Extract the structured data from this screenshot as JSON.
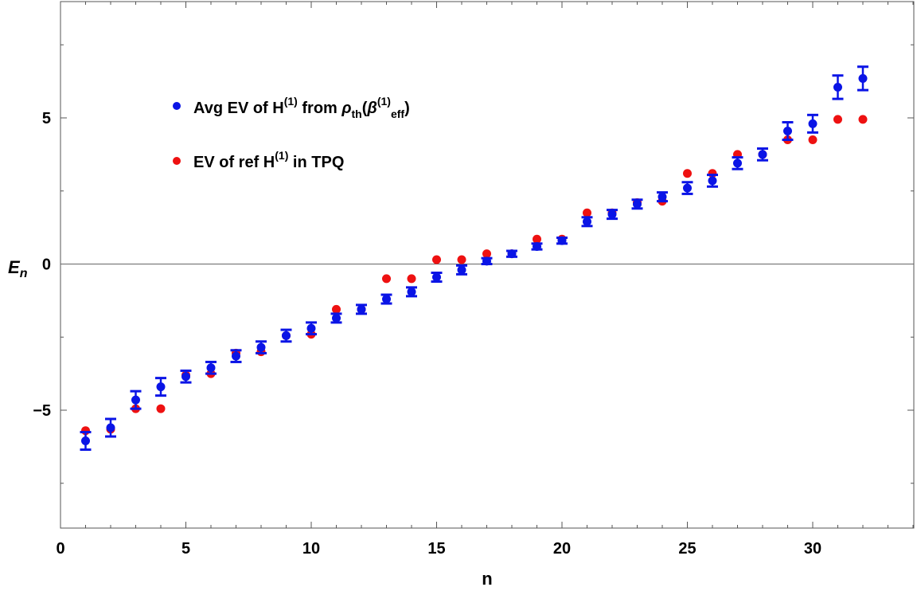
{
  "chart_data": {
    "type": "scatter",
    "xlabel": "n",
    "ylabel": "E",
    "ylabel_sub": "n",
    "xlim": [
      0,
      34
    ],
    "ylim": [
      -9,
      9
    ],
    "x_ticks": [
      0,
      5,
      10,
      15,
      20,
      25,
      30
    ],
    "y_ticks": [
      -5,
      0,
      5
    ],
    "grid": false,
    "legend_position": "top-left",
    "series": [
      {
        "name": "Avg EV of H(1) from ρth(β(1)eff)",
        "legend": {
          "main": "Avg EV of H",
          "sup1": "(1)",
          "mid": " from ",
          "rho": "ρ",
          "rho_sub": "th",
          "open": "(",
          "beta": "β",
          "sup2": "(1)",
          "eff": "eff",
          "close": ")"
        },
        "color": "#0a14e6",
        "marker": "circle",
        "error_bars": true,
        "x": [
          1,
          2,
          3,
          4,
          5,
          6,
          7,
          8,
          9,
          10,
          11,
          12,
          13,
          14,
          15,
          16,
          17,
          18,
          19,
          20,
          21,
          22,
          23,
          24,
          25,
          26,
          27,
          28,
          29,
          30,
          31,
          32
        ],
        "y": [
          -6.05,
          -5.6,
          -4.65,
          -4.2,
          -3.85,
          -3.55,
          -3.15,
          -2.85,
          -2.45,
          -2.2,
          -1.85,
          -1.55,
          -1.2,
          -0.95,
          -0.45,
          -0.2,
          0.1,
          0.35,
          0.6,
          0.8,
          1.45,
          1.7,
          2.05,
          2.3,
          2.6,
          2.85,
          3.45,
          3.75,
          4.55,
          4.8,
          6.05,
          6.35
        ],
        "err_low": [
          0.3,
          0.3,
          0.3,
          0.3,
          0.2,
          0.2,
          0.2,
          0.2,
          0.2,
          0.2,
          0.15,
          0.15,
          0.15,
          0.15,
          0.15,
          0.15,
          0.1,
          0.1,
          0.1,
          0.1,
          0.15,
          0.15,
          0.15,
          0.15,
          0.2,
          0.2,
          0.2,
          0.2,
          0.3,
          0.3,
          0.4,
          0.4
        ],
        "err_high": [
          0.3,
          0.3,
          0.3,
          0.3,
          0.2,
          0.2,
          0.2,
          0.2,
          0.2,
          0.2,
          0.15,
          0.15,
          0.15,
          0.15,
          0.15,
          0.15,
          0.1,
          0.1,
          0.1,
          0.1,
          0.15,
          0.15,
          0.15,
          0.15,
          0.2,
          0.2,
          0.2,
          0.2,
          0.3,
          0.3,
          0.4,
          0.4
        ]
      },
      {
        "name": "EV of ref H(1) in TPQ",
        "legend": {
          "main": "EV of ref H",
          "sup1": "(1)",
          "rest": " in TPQ"
        },
        "color": "#ee1111",
        "marker": "circle",
        "x": [
          1,
          2,
          3,
          4,
          5,
          6,
          7,
          8,
          9,
          10,
          11,
          12,
          13,
          14,
          15,
          16,
          17,
          18,
          19,
          20,
          21,
          22,
          23,
          24,
          25,
          26,
          27,
          28,
          29,
          30,
          31,
          32
        ],
        "y": [
          -5.7,
          -5.65,
          -4.95,
          -4.95,
          -3.8,
          -3.75,
          -3.05,
          -3.0,
          -2.45,
          -2.4,
          -1.55,
          -1.55,
          -0.5,
          -0.5,
          0.15,
          0.15,
          0.35,
          0.35,
          0.85,
          0.85,
          1.75,
          1.75,
          2.1,
          2.15,
          3.1,
          3.1,
          3.75,
          3.75,
          4.25,
          4.25,
          4.95,
          4.95
        ]
      }
    ]
  }
}
